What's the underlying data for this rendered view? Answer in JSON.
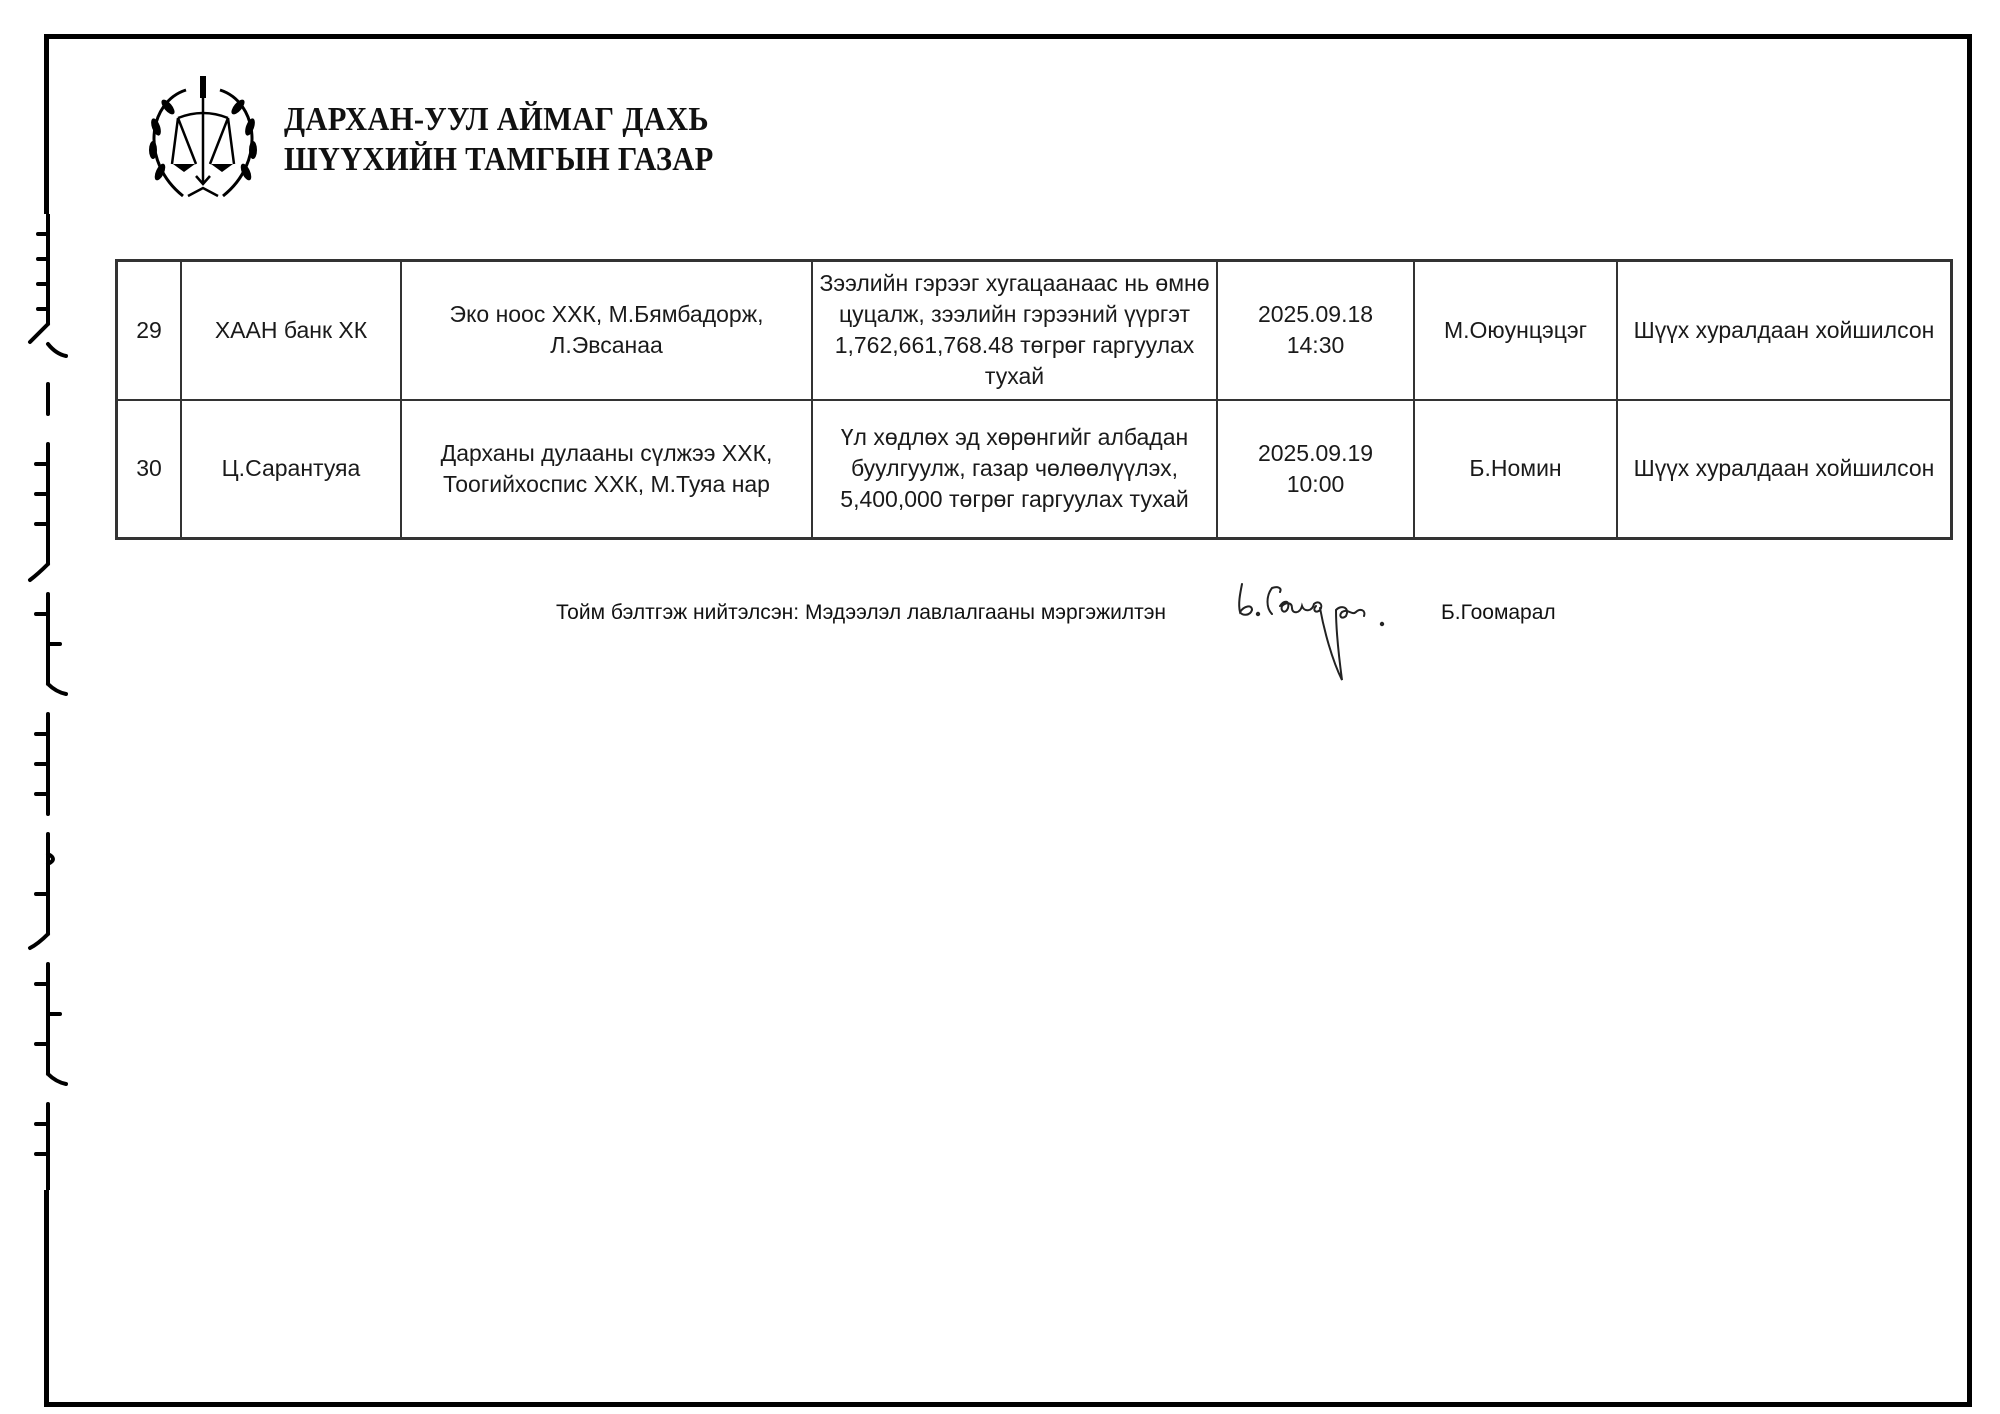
{
  "header": {
    "title_line1": "ДАРХАН-УУЛ АЙМАГ ДАХЬ",
    "title_line2": "ШҮҮХИЙН ТАМГЫН ГАЗАР",
    "logo": "court-emblem-scales-wreath"
  },
  "table": {
    "rows": [
      {
        "no": "29",
        "plaintiff": "ХААН банк ХК",
        "defendant": "Эко ноос ХХК, М.Бямбадорж, Л.Эвсанаа",
        "claim": "Зээлийн гэрээг хугацаанаас нь өмнө цуцалж, зээлийн гэрээний үүргэт 1,762,661,768.48 төгрөг гаргуулах тухай",
        "date": "2025.09.18",
        "time": "14:30",
        "judge": "М.Оюунцэцэг",
        "status": "Шүүх хуралдаан хойшилсон"
      },
      {
        "no": "30",
        "plaintiff": "Ц.Сарантуяа",
        "defendant": "Дарханы дулааны сүлжээ ХХК, Тоогийхоспис ХХК, М.Туяа нар",
        "claim": "Үл хөдлөх эд хөрөнгийг албадан буулгуулж, газар чөлөөлүүлэх, 5,400,000 төгрөг гаргуулах тухай",
        "date": "2025.09.19",
        "time": "10:00",
        "judge": "Б.Номин",
        "status": "Шүүх хуралдаан хойшилсон"
      }
    ]
  },
  "footer": {
    "prepared_by_label": "Тойм бэлтгэж нийтэлсэн: Мэдээлэл лавлалгааны мэргэжилтэн",
    "signature": "Б.Гоомарал (handwritten)",
    "name": "Б.Гоомарал"
  }
}
